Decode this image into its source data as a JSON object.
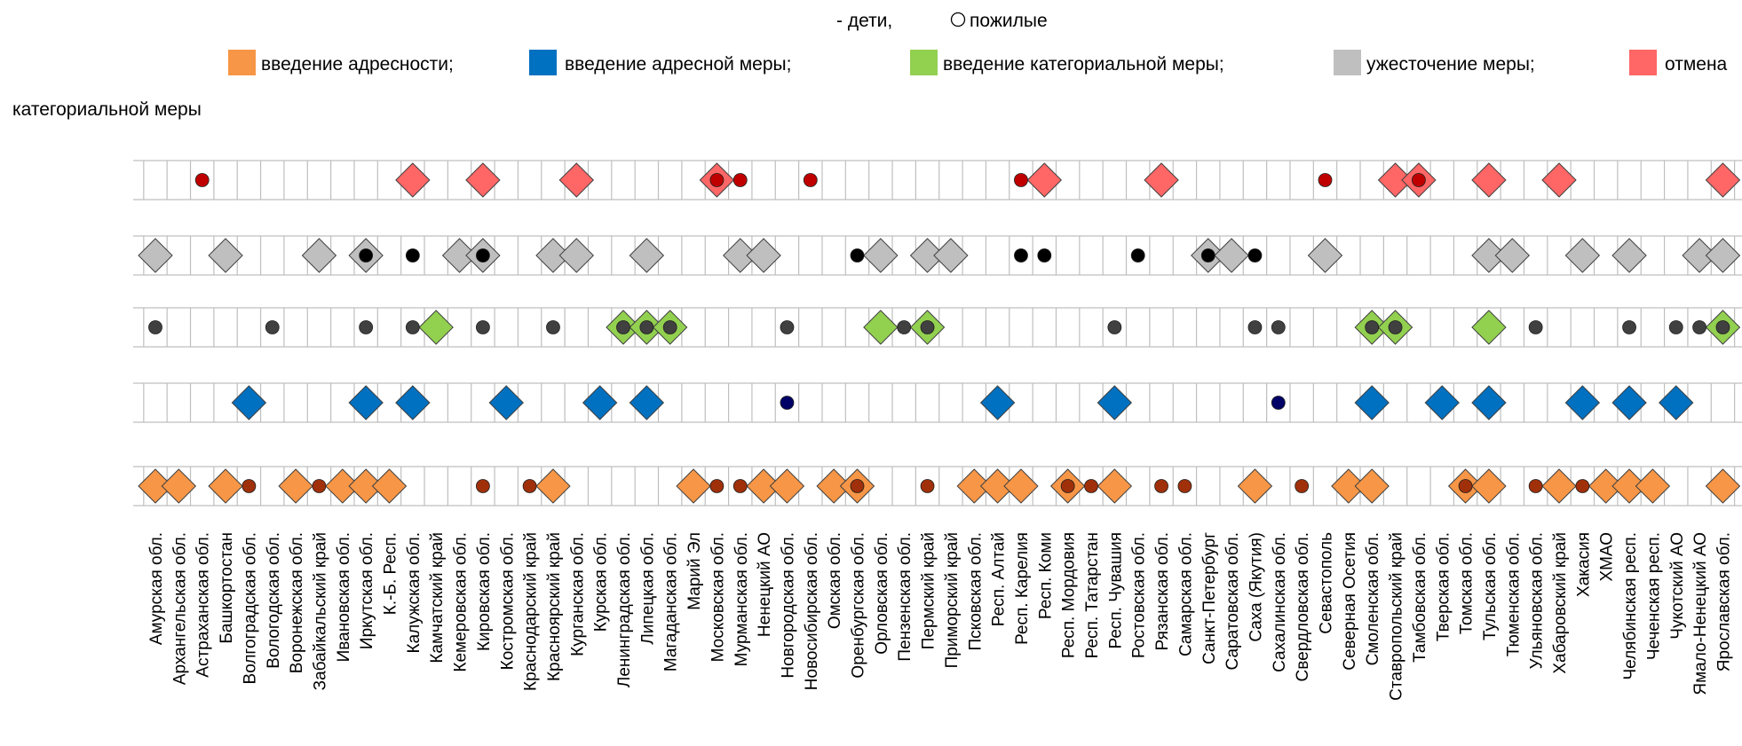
{
  "chart_data": {
    "type": "scatter",
    "legend_top": {
      "filled_label": "- дети,",
      "hollow_label": "пожилые"
    },
    "legend_items": [
      {
        "label": "введение адресности;",
        "color": "#f79646"
      },
      {
        "label": "введение адресной меры;",
        "color": "#0070c0"
      },
      {
        "label": "введение категориальной меры;",
        "color": "#92d050"
      },
      {
        "label": "ужесточение меры;",
        "color": "#bfbfbf"
      },
      {
        "label": "отмена",
        "color": "#ff6666"
      }
    ],
    "legend_wrap_text": "категориальной меры",
    "categories": [
      "Амурская обл.",
      "Архангельская обл.",
      "Астраханская обл.",
      "Башкортостан",
      "Волгоградская обл.",
      "Вологодская обл.",
      "Воронежская обл.",
      "Забайкальский край",
      "Ивановская обл.",
      "Иркутская обл.",
      "К.-Б. Респ.",
      "Калужская обл.",
      "Камчатский край",
      "Кемеровская обл.",
      "Кировская обл.",
      "Костромская обл.",
      "Краснодарский край",
      "Красноярский край",
      "Курганская обл.",
      "Курская обл.",
      "Ленинградская обл.",
      "Липецкая обл.",
      "Магаданская обл.",
      "Марий Эл",
      "Московская обл.",
      "Мурманская обл.",
      "Ненецкий АО",
      "Новгородская обл.",
      "Новосибирская обл.",
      "Омская обл.",
      "Оренбургская обл.",
      "Орловская обл.",
      "Пензенская обл.",
      "Пермский край",
      "Приморский край",
      "Псковская обл.",
      "Респ. Алтай",
      "Респ. Карелия",
      "Респ. Коми",
      "Респ. Мордовия",
      "Респ. Татарстан",
      "Респ. Чувашия",
      "Ростовская обл.",
      "Рязанская обл.",
      "Самарская обл.",
      "Санкт-Петербург",
      "Саратовская обл.",
      "Саха (Якутия)",
      "Сахалинская обл.",
      "Свердловская обл.",
      "Севастополь",
      "Северная Осетия",
      "Смоленская обл.",
      "Ставропольский край",
      "Тамбовская обл.",
      "Тверская обл.",
      "Томская обл.",
      "Тульская обл.",
      "Тюменская обл.",
      "Ульяновская обл.",
      "Хабаровский край",
      "Хакасия",
      "ХМАО",
      "Челябинская респ.",
      "Чеченская респ.",
      "Чукотский АО",
      "Ямало-Ненецкий АО",
      "Ярославская обл."
    ],
    "rows": [
      {
        "name": "отмена категориальной меры",
        "color": "#ff6666",
        "dot_color": "#c00000",
        "diamonds": [
          11,
          14,
          18,
          24,
          38,
          43,
          53,
          54,
          57,
          60,
          67
        ],
        "dots": [
          2,
          24,
          25,
          28,
          37,
          50,
          54
        ]
      },
      {
        "name": "ужесточение меры",
        "color": "#bfbfbf",
        "dot_color": "#000000",
        "diamonds": [
          0,
          3,
          7,
          9,
          13,
          14,
          17,
          18,
          21,
          25,
          26,
          31,
          33,
          34,
          45,
          46,
          50,
          57,
          58,
          61,
          63,
          66,
          67
        ],
        "dots": [
          9,
          11,
          14,
          30,
          37,
          38,
          42,
          45,
          47
        ]
      },
      {
        "name": "введение категориальной меры",
        "color": "#92d050",
        "dot_color": "#404040",
        "diamonds": [
          12,
          20,
          21,
          22,
          31,
          33,
          52,
          53,
          57,
          67
        ],
        "dots": [
          0,
          5,
          9,
          11,
          14,
          17,
          20,
          21,
          22,
          27,
          32,
          33,
          41,
          47,
          48,
          52,
          53,
          59,
          63,
          65,
          66,
          67
        ]
      },
      {
        "name": "введение адресной меры",
        "color": "#0070c0",
        "dot_color": "#000066",
        "diamonds": [
          4,
          9,
          11,
          15,
          19,
          21,
          36,
          41,
          52,
          55,
          57,
          61,
          63,
          65
        ],
        "dots": [
          27,
          48
        ]
      },
      {
        "name": "введение адресности",
        "color": "#f79646",
        "dot_color": "#a0300a",
        "diamonds": [
          0,
          1,
          3,
          6,
          8,
          9,
          10,
          17,
          23,
          26,
          27,
          29,
          30,
          35,
          36,
          37,
          39,
          41,
          47,
          51,
          52,
          56,
          57,
          60,
          62,
          63,
          64,
          67
        ],
        "dots": [
          4,
          7,
          14,
          16,
          24,
          25,
          30,
          33,
          39,
          40,
          43,
          44,
          49,
          56,
          59,
          61
        ]
      }
    ]
  }
}
